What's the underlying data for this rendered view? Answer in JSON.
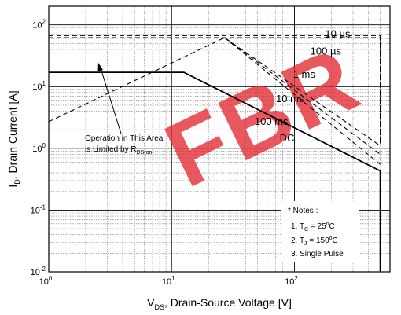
{
  "chart_data": {
    "type": "line",
    "title": "",
    "xscale": "log",
    "yscale": "log",
    "xlim": [
      1,
      600
    ],
    "ylim": [
      0.01,
      200
    ],
    "grid": true,
    "xlabel": {
      "main": "V",
      "sub": "DS",
      "rest": ", Drain-Source Voltage [V]"
    },
    "ylabel": {
      "main": "I",
      "sub": "D",
      "rest": ", Drain Current [A]"
    },
    "x_ticks": [
      {
        "value": 1,
        "base": "10",
        "exp": "0"
      },
      {
        "value": 10,
        "base": "10",
        "exp": "1"
      },
      {
        "value": 100,
        "base": "10",
        "exp": "2"
      }
    ],
    "y_ticks": [
      {
        "value": 0.01,
        "base": "10",
        "exp": "-2"
      },
      {
        "value": 0.1,
        "base": "10",
        "exp": "-1"
      },
      {
        "value": 1,
        "base": "10",
        "exp": "0"
      },
      {
        "value": 10,
        "base": "10",
        "exp": "1"
      },
      {
        "value": 100,
        "base": "10",
        "exp": "2"
      }
    ],
    "series": [
      {
        "name": "10 µs",
        "style": "dashed",
        "points": [
          [
            1,
            67
          ],
          [
            500,
            67
          ],
          [
            500,
            1.3
          ]
        ]
      },
      {
        "name": "100 µs",
        "style": "dashed",
        "points": [
          [
            1,
            62
          ],
          [
            500,
            62
          ],
          [
            500,
            1.2
          ]
        ]
      },
      {
        "name": "1 ms",
        "style": "dashed",
        "points": [
          [
            1,
            2.7
          ],
          [
            27,
            62
          ],
          [
            500,
            1.1
          ]
        ]
      },
      {
        "name": "10 ms",
        "style": "dashed",
        "points": [
          [
            27,
            62
          ],
          [
            500,
            0.8
          ]
        ]
      },
      {
        "name": "100 ms",
        "style": "dashed",
        "points": [
          [
            27,
            62
          ],
          [
            500,
            0.55
          ]
        ]
      },
      {
        "name": "DC",
        "style": "solid",
        "points": [
          [
            1,
            17
          ],
          [
            12.6,
            17
          ],
          [
            500,
            0.43
          ],
          [
            500,
            0.01
          ]
        ]
      }
    ],
    "curve_labels": [
      {
        "text": "10 µs",
        "x": 225,
        "y": 63
      },
      {
        "text": "100 µs",
        "x": 180,
        "y": 33
      },
      {
        "text": "1 ms",
        "x": 120,
        "y": 14
      },
      {
        "text": "10 ms",
        "x": 92,
        "y": 5.6
      },
      {
        "text": "100 ms",
        "x": 65,
        "y": 2.4
      },
      {
        "text": "DC",
        "x": 87,
        "y": 1.3
      }
    ],
    "annotations": {
      "operation": {
        "line1": "Operation in This Area",
        "line2_main": "is Limited by R",
        "line2_sub": "DS(on)"
      },
      "notes": {
        "header": "* Notes :",
        "n1_pre": "1. T",
        "n1_sub": "C",
        "n1_post": " = 25",
        "n1_unit": "C",
        "n2_pre": "2. T",
        "n2_sub": "J",
        "n2_post": " = 150",
        "n2_unit": "C",
        "n3": "3. Single Pulse"
      }
    },
    "watermark": "FBR"
  }
}
